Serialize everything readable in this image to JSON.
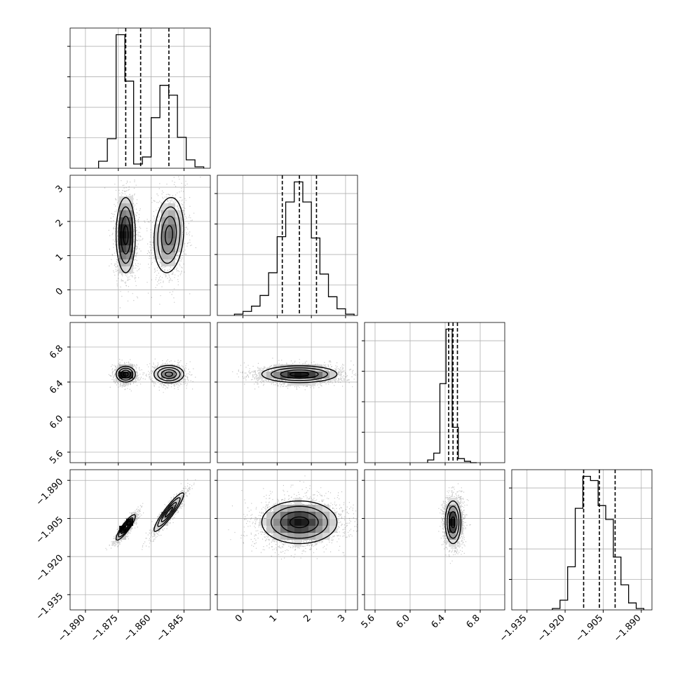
{
  "chart_data": {
    "type": "corner",
    "grid": true,
    "colors": {
      "hist": "#000000",
      "grid": "#b0b0b0",
      "frame": "#000000",
      "scatter": "#000000",
      "density_max": "#000000",
      "density_min": "#ffffff"
    },
    "parameters": [
      {
        "range": [
          -1.897,
          -1.833
        ],
        "ticks": [
          -1.89,
          -1.875,
          -1.86,
          -1.845
        ],
        "tick_labels": [
          "−1.890",
          "−1.875",
          "−1.860",
          "−1.845"
        ],
        "quantiles": [
          -1.8716,
          -1.8648,
          -1.8519
        ]
      },
      {
        "range": [
          -0.75,
          3.35
        ],
        "ticks": [
          0,
          1,
          2,
          3
        ],
        "tick_labels": [
          "0",
          "1",
          "2",
          "3"
        ],
        "quantiles": [
          1.15,
          1.65,
          2.15
        ]
      },
      {
        "range": [
          5.48,
          7.08
        ],
        "ticks": [
          5.6,
          6.0,
          6.4,
          6.8
        ],
        "tick_labels": [
          "5.6",
          "6.0",
          "6.4",
          "6.8"
        ],
        "quantiles": [
          6.44,
          6.49,
          6.54
        ]
      },
      {
        "range": [
          -1.941,
          -1.8858
        ],
        "ticks": [
          -1.935,
          -1.92,
          -1.905,
          -1.89
        ],
        "tick_labels": [
          "−1.935",
          "−1.920",
          "−1.905",
          "−1.890"
        ],
        "quantiles": [
          -1.9127,
          -1.9065,
          -1.9003
        ]
      }
    ],
    "histograms": [
      {
        "bins": [
          -1.884,
          -1.88,
          -1.876,
          -1.872,
          -1.868,
          -1.864,
          -1.86,
          -1.856,
          -1.852,
          -1.848,
          -1.844,
          -1.84,
          -1.836
        ],
        "counts": [
          0.05,
          0.21,
          0.95,
          0.62,
          0.03,
          0.08,
          0.36,
          0.59,
          0.52,
          0.22,
          0.06,
          0.01
        ]
      },
      {
        "bins": [
          -0.25,
          0.0,
          0.25,
          0.5,
          0.75,
          1.0,
          1.25,
          1.5,
          1.75,
          2.0,
          2.25,
          2.5,
          2.75,
          3.0,
          3.25
        ],
        "counts": [
          0.01,
          0.03,
          0.07,
          0.15,
          0.32,
          0.59,
          0.85,
          1.0,
          0.85,
          0.58,
          0.31,
          0.14,
          0.05,
          0.01
        ]
      },
      {
        "bins": [
          6.2,
          6.27,
          6.34,
          6.41,
          6.48,
          6.55,
          6.62,
          6.69,
          6.76
        ],
        "counts": [
          0.02,
          0.07,
          0.58,
          0.98,
          0.26,
          0.03,
          0.01,
          0.0
        ]
      },
      {
        "bins": [
          -1.925,
          -1.922,
          -1.919,
          -1.916,
          -1.913,
          -1.91,
          -1.907,
          -1.904,
          -1.901,
          -1.898,
          -1.895,
          -1.892,
          -1.889
        ],
        "counts": [
          0.01,
          0.07,
          0.31,
          0.73,
          0.96,
          0.93,
          0.75,
          0.65,
          0.38,
          0.18,
          0.05,
          0.01
        ]
      }
    ],
    "joint": [
      {
        "x": 0,
        "y": 1,
        "clusters": [
          {
            "mx": -1.8716,
            "my": 1.6,
            "sx": 0.0022,
            "sy": 0.55,
            "rho": 0.0,
            "weight": 0.55
          },
          {
            "mx": -1.8519,
            "my": 1.6,
            "sx": 0.0034,
            "sy": 0.55,
            "rho": 0.15,
            "weight": 0.45
          }
        ]
      },
      {
        "x": 0,
        "y": 2,
        "clusters": [
          {
            "mx": -1.8716,
            "my": 6.49,
            "sx": 0.0022,
            "sy": 0.045,
            "rho": 0.0,
            "weight": 0.55
          },
          {
            "mx": -1.8519,
            "my": 6.49,
            "sx": 0.0034,
            "sy": 0.05,
            "rho": 0.0,
            "weight": 0.45
          }
        ]
      },
      {
        "x": 1,
        "y": 2,
        "clusters": [
          {
            "mx": 1.65,
            "my": 6.49,
            "sx": 0.55,
            "sy": 0.048,
            "rho": 0.0,
            "weight": 1.0
          }
        ]
      },
      {
        "x": 0,
        "y": 3,
        "clusters": [
          {
            "mx": -1.8716,
            "my": -1.9085,
            "sx": 0.0022,
            "sy": 0.0025,
            "rho": 0.88,
            "weight": 0.55
          },
          {
            "mx": -1.8519,
            "my": -1.9025,
            "sx": 0.0034,
            "sy": 0.0038,
            "rho": 0.92,
            "weight": 0.45
          }
        ]
      },
      {
        "x": 1,
        "y": 3,
        "clusters": [
          {
            "mx": 1.65,
            "my": -1.9065,
            "sx": 0.55,
            "sy": 0.0042,
            "rho": 0.0,
            "weight": 1.0
          }
        ]
      },
      {
        "x": 2,
        "y": 3,
        "clusters": [
          {
            "mx": 6.49,
            "my": -1.9065,
            "sx": 0.045,
            "sy": 0.0042,
            "rho": 0.0,
            "weight": 1.0
          }
        ]
      }
    ]
  }
}
